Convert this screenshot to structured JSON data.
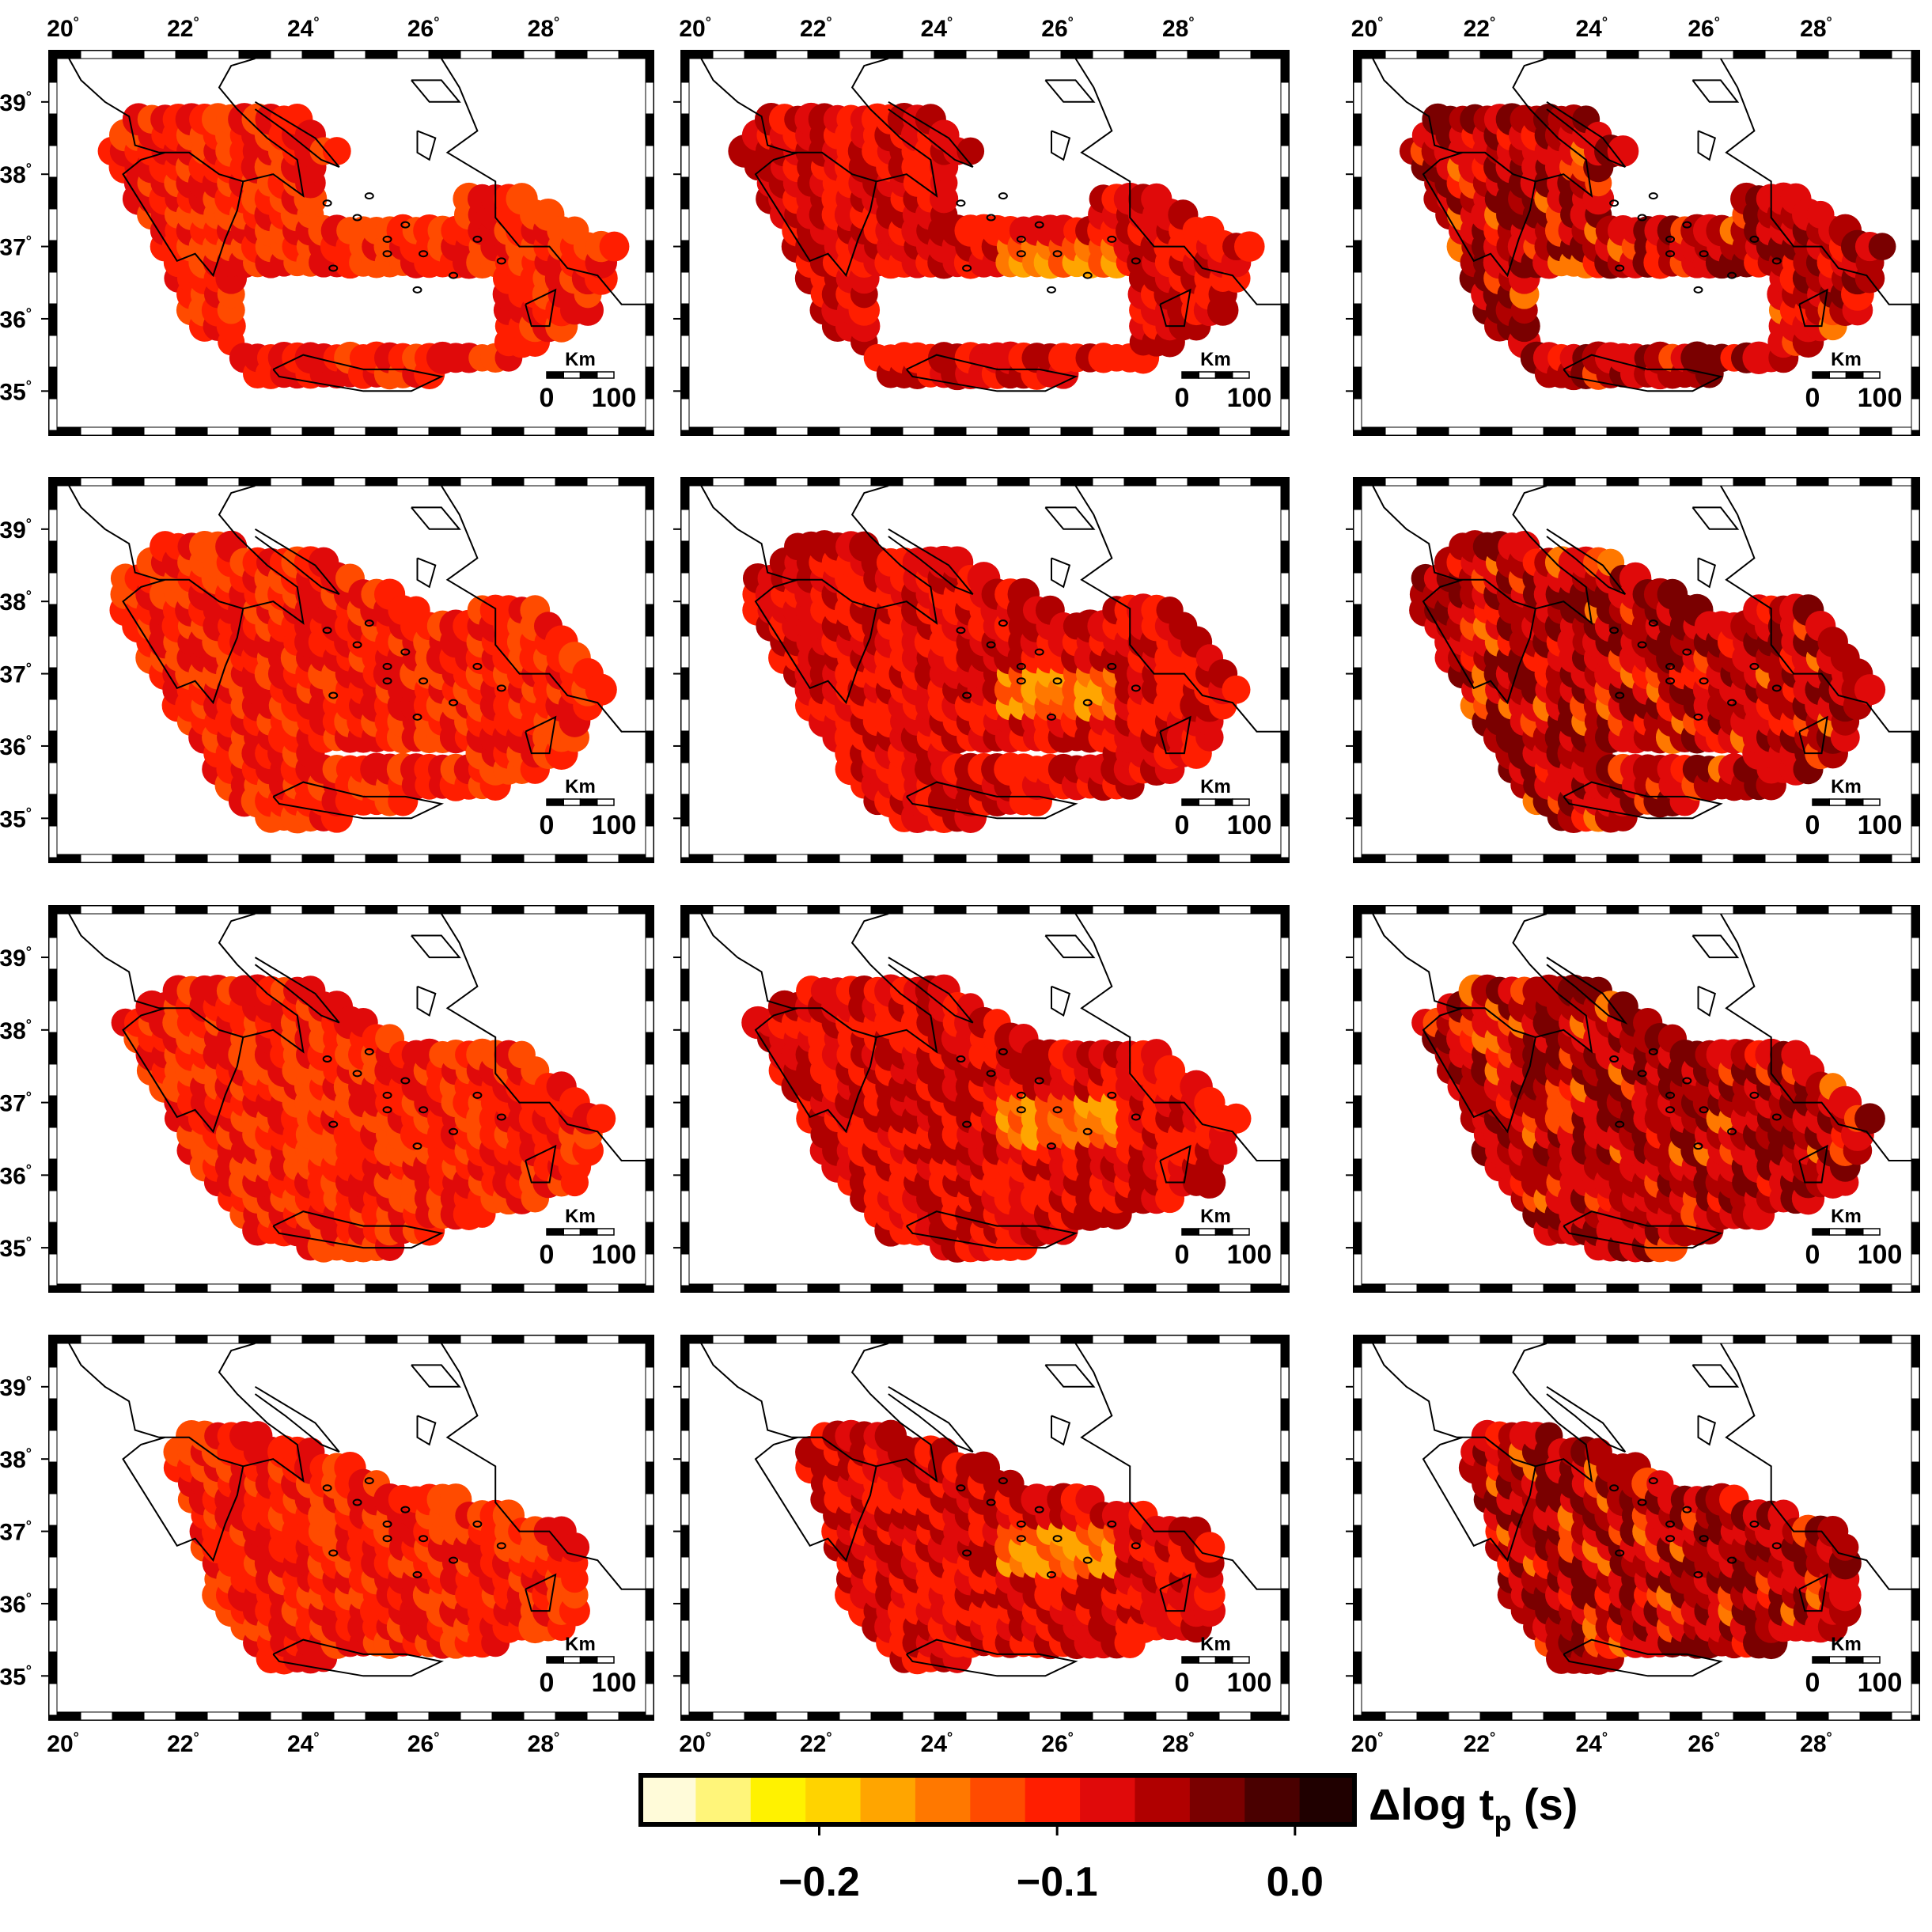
{
  "figure": {
    "lon_ticks": [
      20,
      22,
      24,
      26,
      28
    ],
    "lat_ticks": [
      35,
      36,
      37,
      38,
      39
    ],
    "lon_range": [
      19.9,
      29.7
    ],
    "lat_range": [
      34.5,
      39.6
    ],
    "degree_symbol": "°",
    "scale_bar": {
      "unit_label": "Km",
      "start_label": "0",
      "end_label": "100"
    },
    "panel_count": 12,
    "grid": "4 rows x 3 columns"
  },
  "colorbar": {
    "title_prefix": "Δlog t",
    "title_subscript": "p",
    "title_suffix": " (s)",
    "tick_labels": [
      "−0.2",
      "−0.1",
      "0.0"
    ],
    "tick_values": [
      -0.2,
      -0.1,
      0.0
    ],
    "range": [
      -0.275,
      0.025
    ],
    "colors": [
      "#fffbd9",
      "#fff57a",
      "#fff200",
      "#ffd300",
      "#ffa500",
      "#ff7800",
      "#ff4b00",
      "#ff1e00",
      "#e00a0a",
      "#b00000",
      "#7a0000",
      "#4a0000",
      "#200000"
    ]
  },
  "colors": {
    "coastline": "#000000",
    "frame": "#000000",
    "background": "#ffffff"
  }
}
